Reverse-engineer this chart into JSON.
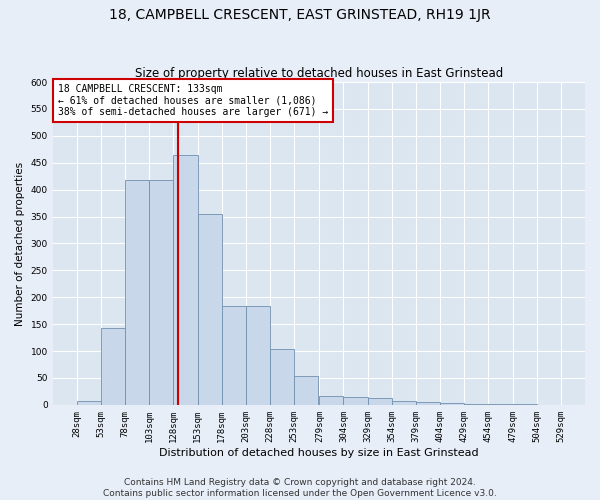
{
  "title": "18, CAMPBELL CRESCENT, EAST GRINSTEAD, RH19 1JR",
  "subtitle": "Size of property relative to detached houses in East Grinstead",
  "xlabel": "Distribution of detached houses by size in East Grinstead",
  "ylabel": "Number of detached properties",
  "bin_edges": [
    28,
    53,
    78,
    103,
    128,
    153,
    178,
    203,
    228,
    253,
    279,
    304,
    329,
    354,
    379,
    404,
    429,
    454,
    479,
    504,
    529
  ],
  "bar_heights": [
    8,
    142,
    418,
    418,
    465,
    355,
    183,
    183,
    103,
    53,
    17,
    15,
    12,
    8,
    5,
    3,
    2,
    1,
    1,
    0
  ],
  "bar_color": "#c8d8ea",
  "bar_edge_color": "#7090b0",
  "red_line_x": 133,
  "annotation_text": "18 CAMPBELL CRESCENT: 133sqm\n← 61% of detached houses are smaller (1,086)\n38% of semi-detached houses are larger (671) →",
  "annotation_box_color": "#ffffff",
  "annotation_border_color": "#cc0000",
  "ylim": [
    0,
    600
  ],
  "yticks": [
    0,
    50,
    100,
    150,
    200,
    250,
    300,
    350,
    400,
    450,
    500,
    550,
    600
  ],
  "footer_line1": "Contains HM Land Registry data © Crown copyright and database right 2024.",
  "footer_line2": "Contains public sector information licensed under the Open Government Licence v3.0.",
  "fig_bg_color": "#e8eef8",
  "plot_bg_color": "#dce6f0",
  "grid_color": "#ffffff",
  "title_fontsize": 10,
  "subtitle_fontsize": 8.5,
  "ylabel_fontsize": 7.5,
  "xlabel_fontsize": 8,
  "tick_fontsize": 6.5,
  "annotation_fontsize": 7,
  "footer_fontsize": 6.5
}
